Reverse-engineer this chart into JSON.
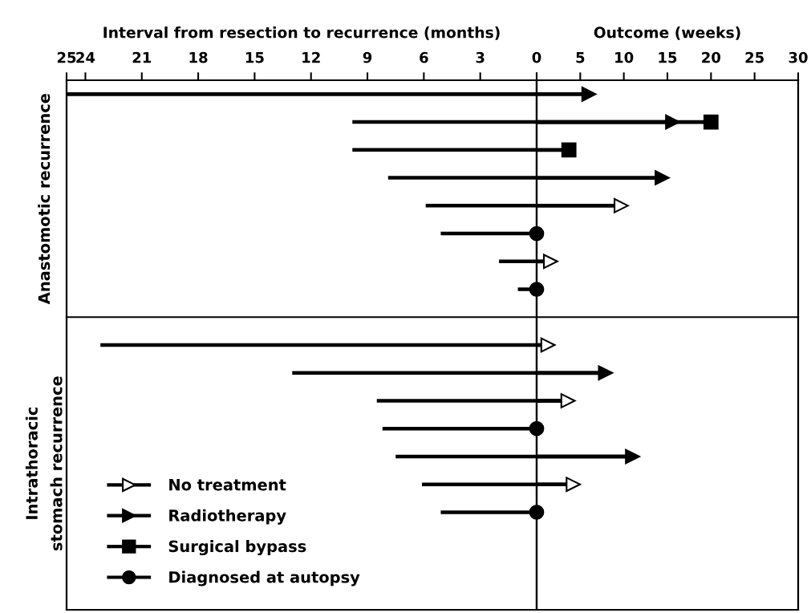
{
  "chart_data": [
    {
      "type": "bar",
      "orientation": "horizontal",
      "title": "Interval from resection to recurrence (months)",
      "categories": [
        null,
        null,
        null,
        null,
        null,
        null,
        null,
        null,
        null,
        null,
        null,
        null,
        null,
        null,
        null,
        null,
        null,
        null,
        null
      ],
      "values": [
        25.0,
        9.8,
        9.8,
        7.9,
        5.9,
        5.1,
        2.0,
        1.0,
        null,
        23.2,
        13.0,
        8.5,
        8.2,
        7.5,
        6.1,
        5.1,
        null,
        null,
        null
      ],
      "color": "#000000",
      "xlim": [
        25,
        0
      ],
      "xticks": [
        25,
        24,
        21,
        18,
        15,
        12,
        9,
        6,
        3,
        0
      ],
      "tick_labels": "x",
      "grid": false,
      "annotations": [
        "Anastomotic recurrence",
        "Intrathoracic\nstomach recurrence"
      ]
    },
    {
      "type": "lollipop",
      "orientation": "horizontal",
      "title": "Outcome (weeks)",
      "categories": [
        null,
        null,
        null,
        null,
        null,
        null,
        null,
        null,
        null,
        null,
        null,
        null,
        null,
        null,
        null,
        null,
        null,
        null,
        null
      ],
      "xlim": [
        0,
        30
      ],
      "xticks": [
        {
          "value": 0,
          "label": null
        },
        5,
        10,
        15,
        20,
        25,
        30
      ],
      "tick_labels": "x",
      "grid": false,
      "legend": "bottom left",
      "series": [
        {
          "name": "No treatment",
          "color": "#ffffff",
          "marker": "triangle",
          "values": [
            null,
            null,
            null,
            null,
            9.7,
            null,
            1.6,
            null,
            null,
            1.3,
            null,
            3.6,
            null,
            null,
            4.2,
            null,
            null,
            null,
            null
          ]
        },
        {
          "name": "Radiotherapy",
          "color": "#000000",
          "marker": "triangle",
          "values": [
            6.0,
            15.6,
            null,
            14.4,
            null,
            null,
            null,
            null,
            null,
            null,
            7.9,
            null,
            null,
            11.0,
            null,
            null,
            null,
            null,
            null
          ]
        },
        {
          "name": "Surgical bypass",
          "color": "#000000",
          "marker": "square",
          "values": [
            null,
            20.0,
            3.7,
            null,
            null,
            null,
            null,
            null,
            null,
            null,
            null,
            null,
            null,
            null,
            null,
            null,
            null,
            null,
            null
          ]
        },
        {
          "name": "Diagnosed at autopsy",
          "color": "#000000",
          "marker": "circle",
          "values": [
            null,
            null,
            null,
            null,
            null,
            0,
            null,
            0,
            null,
            null,
            null,
            null,
            0,
            null,
            null,
            0,
            null,
            null,
            null
          ]
        }
      ]
    }
  ]
}
